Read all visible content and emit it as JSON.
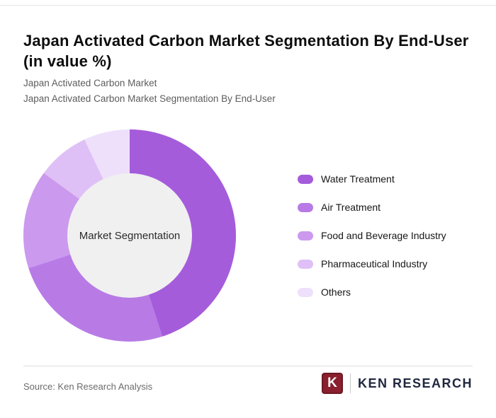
{
  "page": {
    "title": "Japan Activated Carbon Market Segmentation By End-User (in value %)",
    "subtitle_line1": "Japan Activated Carbon Market",
    "subtitle_line2": "Japan Activated Carbon Market Segmentation By End-User",
    "source": "Source: Ken Research Analysis"
  },
  "logo": {
    "mark_letter": "K",
    "brand": "KEN RESEARCH",
    "mark_color": "#8a1f2e",
    "text_color": "#20283f"
  },
  "chart_data": {
    "type": "pie",
    "donut": true,
    "title": "Japan Activated Carbon Market Segmentation By End-User (in value %)",
    "center_label": "Market Segmentation",
    "legend_position": "right",
    "categories": [
      "Water Treatment",
      "Air Treatment",
      "Food and Beverage Industry",
      "Pharmaceutical Industry",
      "Others"
    ],
    "values": [
      45,
      25,
      15,
      8,
      7
    ],
    "unit": "%",
    "colors": [
      "#a55cdb",
      "#b87be6",
      "#cb99ee",
      "#dfc0f6",
      "#eee0fb"
    ],
    "hole_color": "#f0f0f0"
  }
}
